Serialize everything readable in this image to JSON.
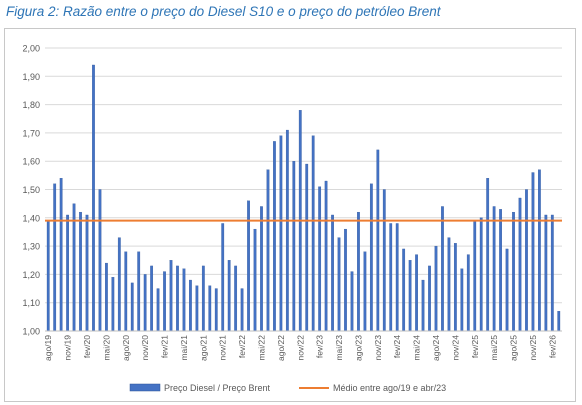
{
  "title": "Figura 2: Razão entre o preço do Diesel S10 e o preço do petróleo Brent",
  "chart_data": {
    "type": "bar",
    "ylim": [
      1.0,
      2.0
    ],
    "yticks": [
      "1,00",
      "1,10",
      "1,20",
      "1,30",
      "1,40",
      "1,50",
      "1,60",
      "1,70",
      "1,80",
      "1,90",
      "2,00"
    ],
    "categories": [
      "ago/19",
      "set/19",
      "out/19",
      "nov/19",
      "dez/19",
      "jan/20",
      "fev/20",
      "mar/20",
      "abr/20",
      "mai/20",
      "jun/20",
      "jul/20",
      "ago/20",
      "set/20",
      "out/20",
      "nov/20",
      "dez/20",
      "jan/21",
      "fev/21",
      "mar/21",
      "abr/21",
      "mai/21",
      "jun/21",
      "jul/21",
      "ago/21",
      "set/21",
      "out/21",
      "nov/21",
      "dez/21",
      "jan/22",
      "fev/22",
      "mar/22",
      "abr/22",
      "mai/22",
      "jun/22",
      "jul/22",
      "ago/22",
      "set/22",
      "out/22",
      "nov/22",
      "dez/22",
      "jan/23",
      "fev/23",
      "mar/23",
      "abr/23",
      "mai/23",
      "jun/23",
      "jul/23",
      "ago/23",
      "set/23",
      "out/23",
      "nov/23",
      "dez/23",
      "jan/24",
      "fev/24",
      "mar/24",
      "abr/24",
      "mai/24",
      "jun/24",
      "jul/24",
      "ago/24",
      "set/24",
      "out/24",
      "nov/24",
      "dez/24",
      "jan/25",
      "fev/25",
      "mar/25",
      "abr/25",
      "mai/25",
      "jun/25",
      "jul/25",
      "ago/25",
      "set/25",
      "out/25",
      "nov/25",
      "dez/25",
      "jan/26",
      "fev/26",
      "mar/26"
    ],
    "xtick_labels": [
      "ago/19",
      "nov/19",
      "fev/20",
      "mai/20",
      "ago/20",
      "nov/20",
      "fev/21",
      "mai/21",
      "ago/21",
      "nov/21",
      "fev/22",
      "mai/22",
      "ago/22",
      "nov/22",
      "fev/23",
      "mai/23",
      "ago/23",
      "nov/23",
      "fev/24",
      "mai/24",
      "ago/24",
      "nov/24",
      "fev/25",
      "mai/25",
      "ago/25",
      "nov/25",
      "fev/26"
    ],
    "series": [
      {
        "name": "Preço Diesel / Preço Brent",
        "color": "#4472c4",
        "values": [
          1.39,
          1.52,
          1.54,
          1.41,
          1.45,
          1.42,
          1.41,
          1.94,
          1.5,
          1.24,
          1.19,
          1.33,
          1.28,
          1.17,
          1.28,
          1.2,
          1.23,
          1.15,
          1.21,
          1.25,
          1.23,
          1.22,
          1.18,
          1.16,
          1.23,
          1.16,
          1.15,
          1.38,
          1.25,
          1.23,
          1.15,
          1.46,
          1.36,
          1.44,
          1.57,
          1.67,
          1.69,
          1.71,
          1.6,
          1.78,
          1.59,
          1.69,
          1.51,
          1.53,
          1.41,
          1.33,
          1.36,
          1.21,
          1.42,
          1.28,
          1.52,
          1.64,
          1.5,
          1.38,
          1.38,
          1.29,
          1.25,
          1.27,
          1.18,
          1.23,
          1.3,
          1.44,
          1.33,
          1.31,
          1.22,
          1.27,
          1.39,
          1.4,
          1.54,
          1.44,
          1.43,
          1.29,
          1.42,
          1.47,
          1.5,
          1.56,
          1.57,
          1.41,
          1.41,
          1.07
        ]
      },
      {
        "name": "Médio entre ago/19 e abr/23",
        "color": "#ed7d31",
        "value": 1.39
      }
    ]
  }
}
